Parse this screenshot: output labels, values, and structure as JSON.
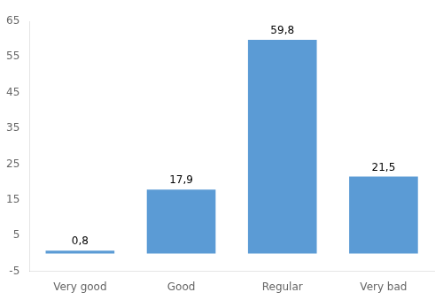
{
  "chart_data": {
    "type": "bar",
    "categories": [
      "Very good",
      "Good",
      "Regular",
      "Very bad"
    ],
    "values": [
      0.8,
      17.9,
      59.8,
      21.5
    ],
    "value_labels": [
      "0,8",
      "17,9",
      "59,8",
      "21,5"
    ],
    "color": "#5B9BD5",
    "ylim": [
      -5,
      65
    ],
    "yticks": [
      -5,
      5,
      15,
      25,
      35,
      45,
      55,
      65
    ],
    "grid": false,
    "data_labels": true
  }
}
